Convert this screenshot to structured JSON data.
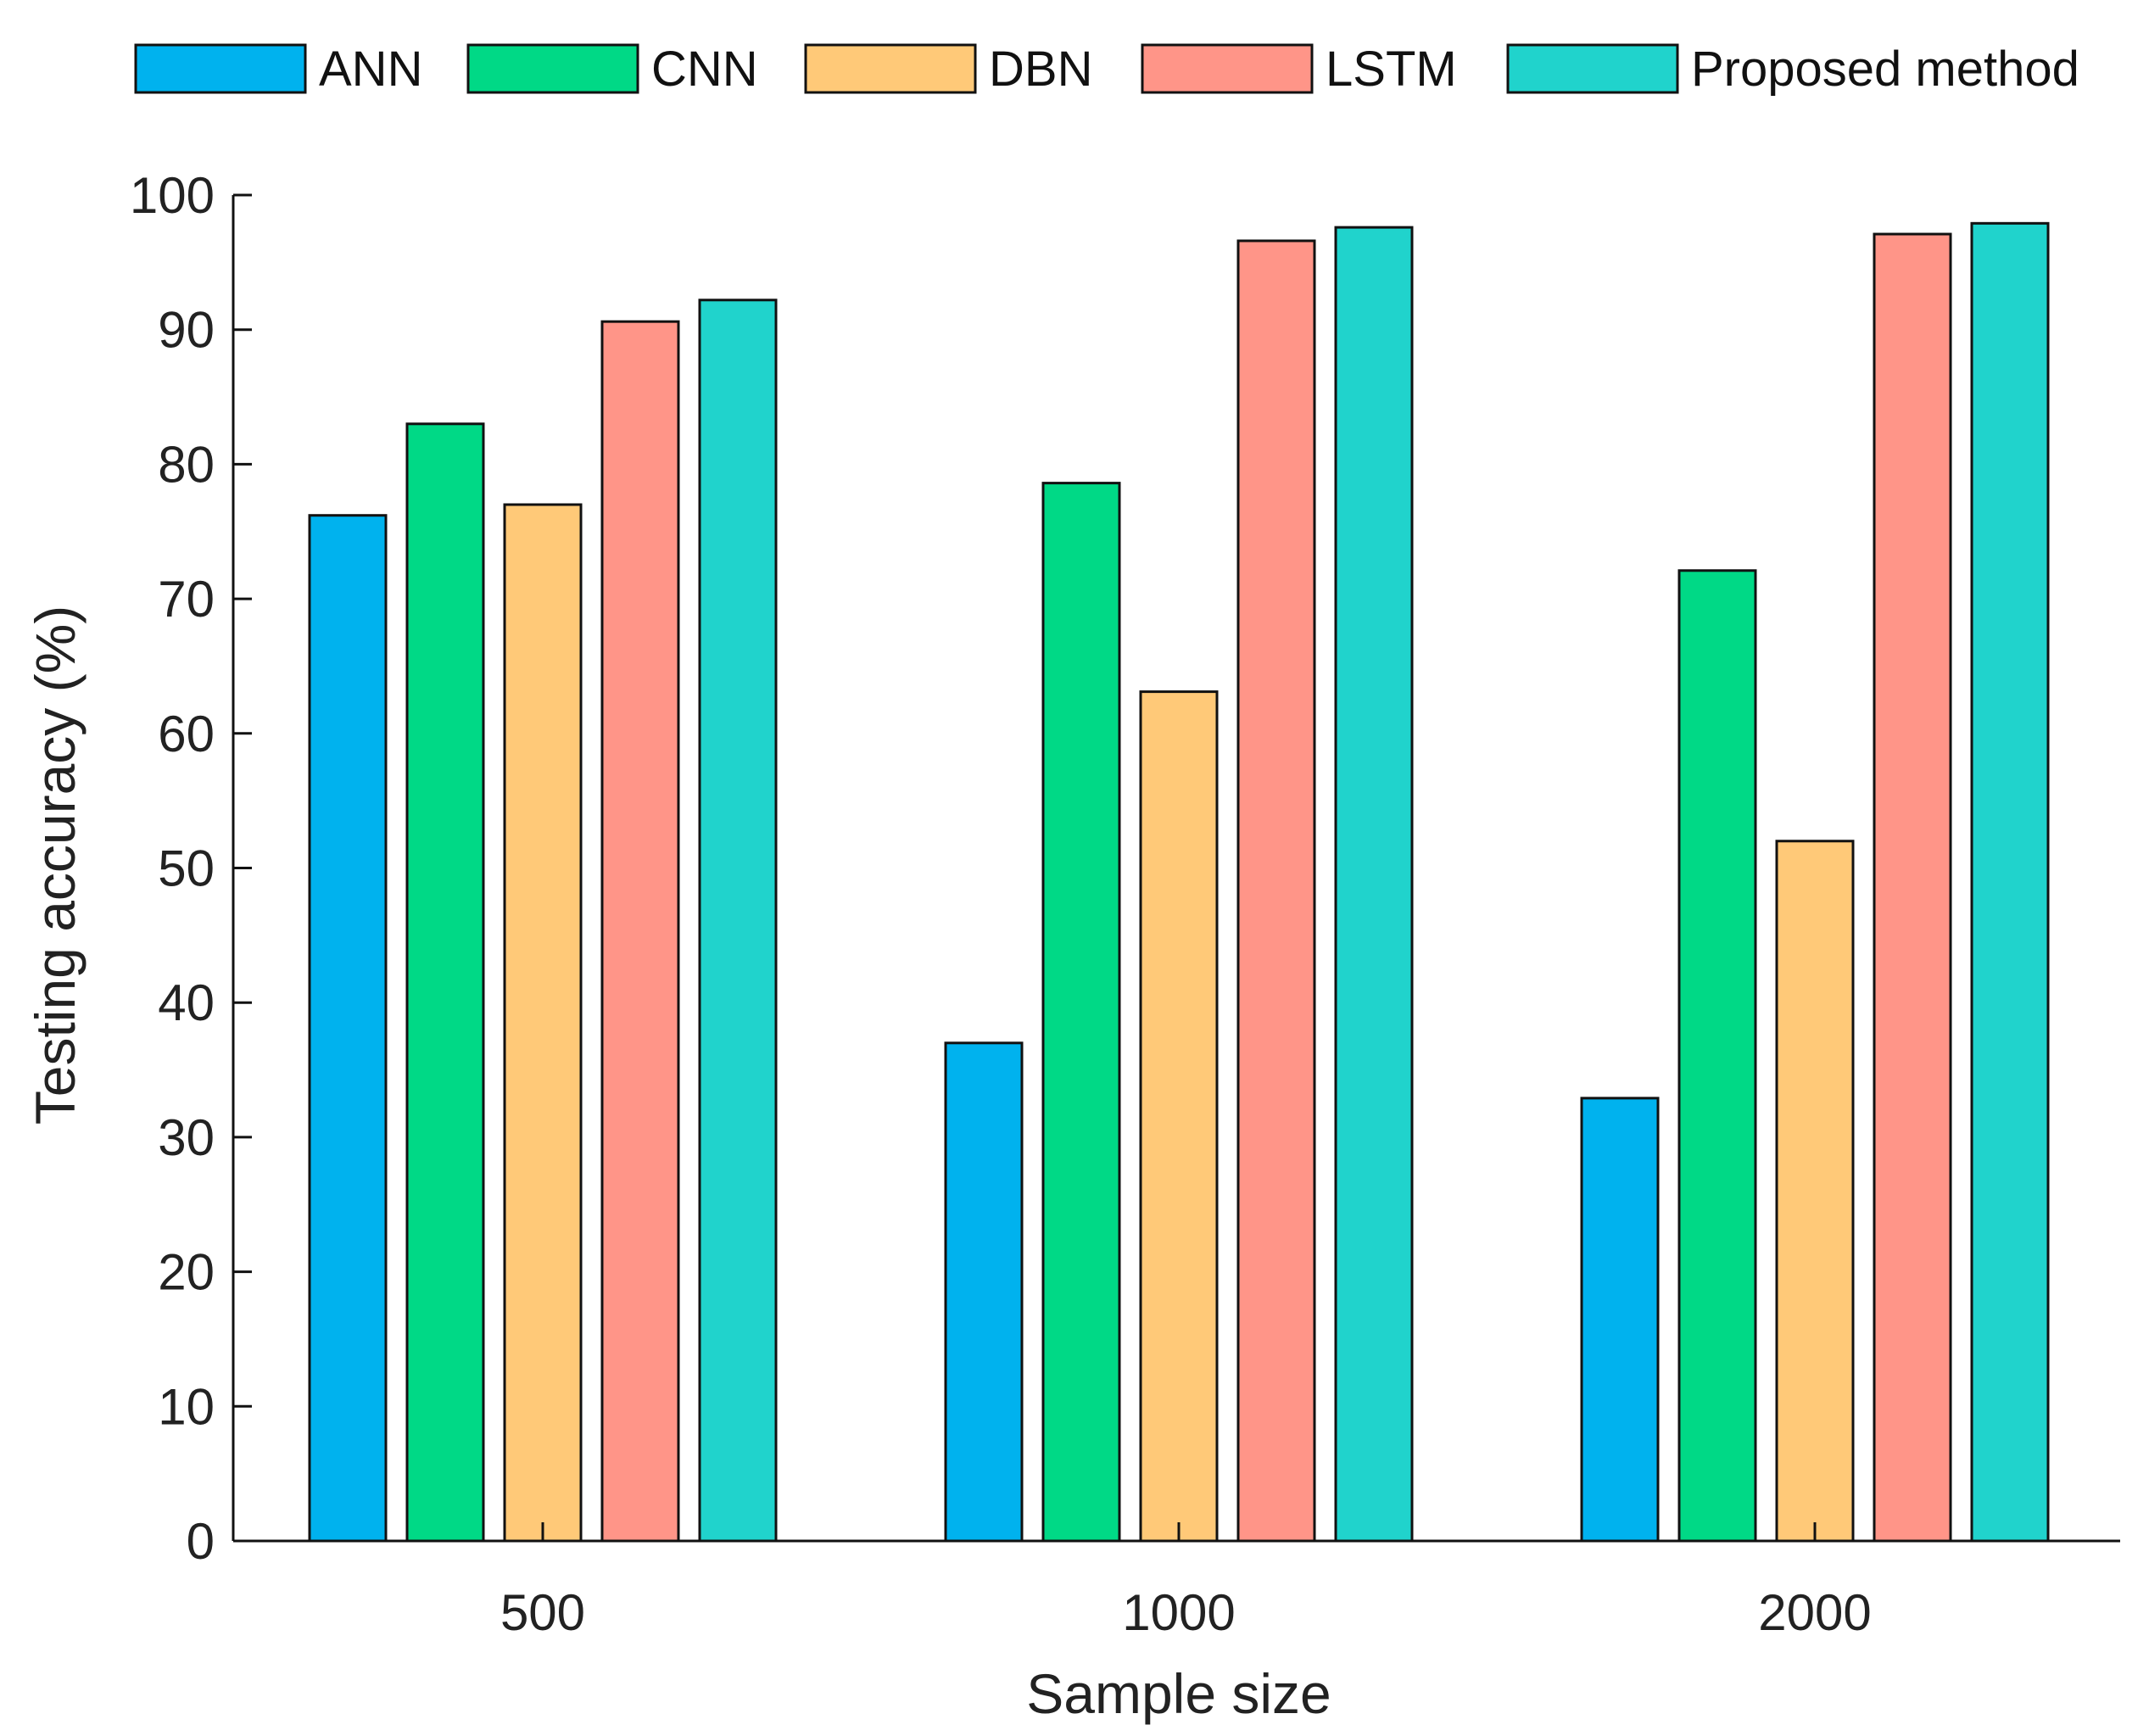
{
  "chart_data": {
    "type": "bar",
    "title": "",
    "xlabel": "Sample size",
    "ylabel": "Testing accuracy (%)",
    "ylim": [
      0,
      100
    ],
    "yticks": [
      0,
      10,
      20,
      30,
      40,
      50,
      60,
      70,
      80,
      90,
      100
    ],
    "grid": false,
    "legend_position": "top",
    "categories": [
      "500",
      "1000",
      "2000"
    ],
    "series": [
      {
        "name": "ANN",
        "color": "#00B2EE",
        "values": [
          76.2,
          37.0,
          32.9
        ]
      },
      {
        "name": "CNN",
        "color": "#00D986",
        "values": [
          83.0,
          78.6,
          72.1
        ]
      },
      {
        "name": "DBN",
        "color": "#FFC978",
        "values": [
          77.0,
          63.1,
          52.0
        ]
      },
      {
        "name": "LSTM",
        "color": "#FF9588",
        "values": [
          90.6,
          96.6,
          97.1
        ]
      },
      {
        "name": "Proposed method",
        "color": "#20D3CC",
        "values": [
          92.2,
          97.6,
          97.9
        ]
      }
    ]
  }
}
